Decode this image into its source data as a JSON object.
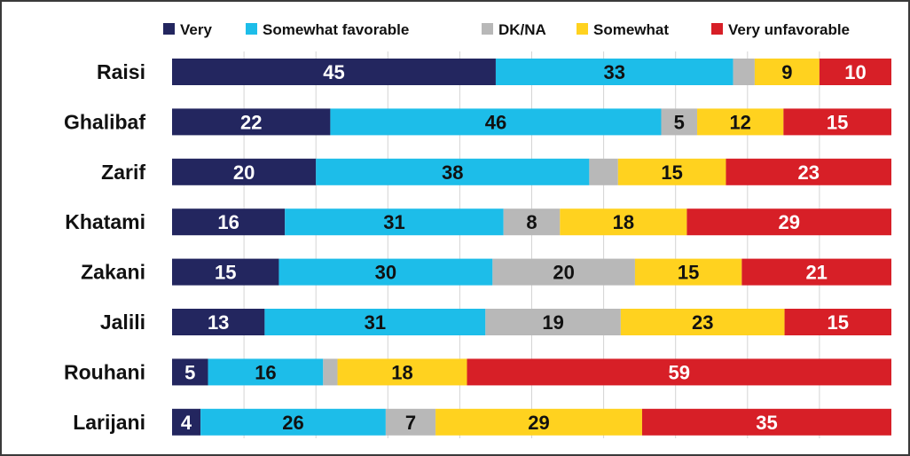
{
  "chart_data": {
    "type": "bar",
    "orientation": "horizontal",
    "stacked": true,
    "normalized": true,
    "title": "",
    "xlabel": "",
    "ylabel": "",
    "xlim": [
      0,
      100
    ],
    "grid": true,
    "legend": "top",
    "categories": [
      "Raisi",
      "Ghalibaf",
      "Zarif",
      "Khatami",
      "Zakani",
      "Jalili",
      "Rouhani",
      "Larijani"
    ],
    "series": [
      {
        "name": "Very",
        "color": "#23265f",
        "label_color": "#ffffff",
        "values": [
          45,
          22,
          20,
          16,
          15,
          13,
          5,
          4
        ]
      },
      {
        "name": "Somewhat favorable",
        "color": "#1dbde9",
        "label_color": "#111111",
        "values": [
          33,
          46,
          38,
          31,
          30,
          31,
          16,
          26
        ]
      },
      {
        "name": "DK/NA",
        "color": "#b8b8b8",
        "label_color": "#111111",
        "values": [
          3,
          5,
          4,
          8,
          20,
          19,
          2,
          7
        ]
      },
      {
        "name": "Somewhat",
        "color": "#ffd21f",
        "label_color": "#111111",
        "values": [
          9,
          12,
          15,
          18,
          15,
          23,
          18,
          29
        ]
      },
      {
        "name": "Very unfavorable",
        "color": "#d71f27",
        "label_color": "#ffffff",
        "values": [
          10,
          15,
          23,
          29,
          21,
          15,
          59,
          35
        ]
      }
    ],
    "hidden_labels": [
      [
        0,
        2
      ],
      [
        2,
        2
      ],
      [
        6,
        2
      ]
    ]
  }
}
